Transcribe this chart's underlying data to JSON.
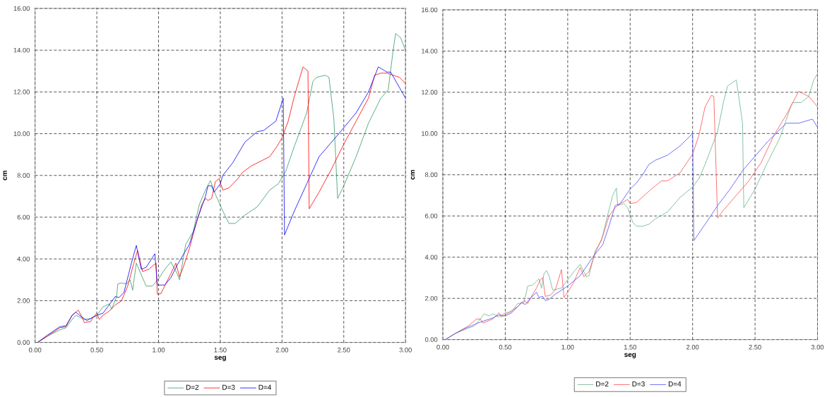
{
  "chart_data": [
    {
      "type": "line",
      "xlabel": "seg",
      "ylabel": "cm",
      "xlim": [
        0,
        3
      ],
      "ylim": [
        0,
        16
      ],
      "xticks": [
        {
          "value": 0,
          "label": "0.00"
        },
        {
          "value": 0.5,
          "label": "0.50"
        },
        {
          "value": 1,
          "label": "1.00"
        },
        {
          "value": 1.5,
          "label": "1.50"
        },
        {
          "value": 2,
          "label": "2.00"
        },
        {
          "value": 2.5,
          "label": "2.50"
        },
        {
          "value": 3,
          "label": "3.00"
        }
      ],
      "yticks": [
        {
          "value": 0,
          "label": "0.00"
        },
        {
          "value": 2,
          "label": "2.00"
        },
        {
          "value": 4,
          "label": "4.00"
        },
        {
          "value": 6,
          "label": "6.00"
        },
        {
          "value": 8,
          "label": "8.00"
        },
        {
          "value": 10,
          "label": "10.00"
        },
        {
          "value": 12,
          "label": "12.00"
        },
        {
          "value": 14,
          "label": "14.00"
        },
        {
          "value": 16,
          "label": "16.00"
        }
      ],
      "grid": true,
      "legend": "bottom",
      "line_style": "solid",
      "series": [
        {
          "name": "D=2",
          "color": "#339966",
          "x": [
            0.02,
            0.1,
            0.2,
            0.25,
            0.3,
            0.33,
            0.4,
            0.45,
            0.5,
            0.55,
            0.6,
            0.62,
            0.66,
            0.67,
            0.7,
            0.74,
            0.77,
            0.79,
            0.82,
            0.87,
            0.9,
            0.95,
            1.0,
            1.05,
            1.1,
            1.15,
            1.17,
            1.22,
            1.28,
            1.33,
            1.38,
            1.42,
            1.46,
            1.52,
            1.57,
            1.62,
            1.7,
            1.75,
            1.8,
            1.9,
            1.97,
            2.03,
            2.1,
            2.2,
            2.25,
            2.28,
            2.35,
            2.38,
            2.42,
            2.45,
            2.5,
            2.6,
            2.7,
            2.8,
            2.86,
            2.9,
            2.92,
            2.96,
            3.0
          ],
          "values": [
            0,
            0.3,
            0.6,
            0.7,
            1.1,
            1.3,
            1.1,
            1.15,
            1.3,
            1.7,
            1.85,
            1.6,
            2.2,
            2.8,
            2.85,
            2.8,
            3.0,
            2.5,
            3.8,
            3.1,
            2.7,
            2.7,
            3.05,
            3.5,
            3.85,
            3.3,
            3.0,
            4.7,
            5.3,
            6.6,
            7.3,
            7.75,
            7.1,
            6.3,
            5.7,
            5.7,
            6.1,
            6.3,
            6.5,
            7.3,
            7.6,
            8.2,
            9.4,
            11.0,
            12.5,
            12.7,
            12.8,
            12.7,
            10.7,
            6.9,
            7.5,
            8.9,
            10.5,
            11.7,
            12.1,
            14.0,
            14.8,
            14.6,
            14.0
          ]
        },
        {
          "name": "D=3",
          "color": "#ff0000",
          "x": [
            0.02,
            0.1,
            0.2,
            0.25,
            0.3,
            0.35,
            0.38,
            0.4,
            0.45,
            0.47,
            0.5,
            0.52,
            0.55,
            0.6,
            0.65,
            0.7,
            0.75,
            0.8,
            0.83,
            0.87,
            0.92,
            0.98,
            0.99,
            1.02,
            1.1,
            1.14,
            1.17,
            1.2,
            1.25,
            1.3,
            1.35,
            1.38,
            1.4,
            1.43,
            1.46,
            1.49,
            1.52,
            1.57,
            1.65,
            1.68,
            1.75,
            1.8,
            1.9,
            1.96,
            2.0,
            2.05,
            2.1,
            2.17,
            2.21,
            2.22,
            2.3,
            2.4,
            2.5,
            2.6,
            2.7,
            2.75,
            2.8,
            2.85,
            2.9,
            2.95,
            3.0
          ],
          "values": [
            0,
            0.3,
            0.7,
            0.75,
            1.3,
            1.55,
            1.2,
            0.95,
            1.0,
            1.2,
            1.4,
            1.1,
            1.3,
            1.5,
            1.8,
            2.0,
            2.7,
            3.8,
            4.4,
            3.4,
            3.5,
            3.8,
            2.3,
            2.35,
            3.3,
            3.8,
            3.15,
            3.6,
            4.5,
            5.6,
            6.6,
            6.9,
            6.8,
            6.9,
            7.7,
            7.85,
            7.3,
            7.4,
            7.9,
            8.15,
            8.45,
            8.6,
            8.9,
            9.4,
            9.8,
            10.6,
            11.8,
            13.2,
            13.0,
            6.4,
            7.2,
            8.3,
            9.5,
            10.6,
            11.7,
            12.8,
            12.9,
            12.9,
            12.8,
            12.7,
            12.4
          ]
        },
        {
          "name": "D=4",
          "color": "#0000ff",
          "x": [
            0.02,
            0.1,
            0.2,
            0.25,
            0.3,
            0.33,
            0.36,
            0.42,
            0.5,
            0.55,
            0.6,
            0.65,
            0.68,
            0.72,
            0.78,
            0.82,
            0.86,
            0.9,
            0.97,
            0.99,
            1.05,
            1.1,
            1.15,
            1.25,
            1.32,
            1.38,
            1.4,
            1.43,
            1.45,
            1.5,
            1.52,
            1.6,
            1.7,
            1.8,
            1.85,
            1.95,
            2.01,
            2.02,
            2.1,
            2.2,
            2.3,
            2.46,
            2.6,
            2.7,
            2.78,
            2.85,
            2.88,
            3.0
          ],
          "values": [
            0,
            0.35,
            0.75,
            0.8,
            1.3,
            1.45,
            1.3,
            1.05,
            1.3,
            1.4,
            1.8,
            2.2,
            2.15,
            2.4,
            3.8,
            4.65,
            3.5,
            3.6,
            4.25,
            2.75,
            2.75,
            3.1,
            3.7,
            4.7,
            6.0,
            7.0,
            7.5,
            7.5,
            7.2,
            7.6,
            8.0,
            8.6,
            9.6,
            10.1,
            10.15,
            10.6,
            11.7,
            5.15,
            6.3,
            7.6,
            8.9,
            10.0,
            11.0,
            12.0,
            13.2,
            12.95,
            12.95,
            11.7
          ]
        }
      ]
    },
    {
      "type": "line",
      "xlabel": "seg",
      "ylabel": "cm",
      "xlim": [
        0,
        3
      ],
      "ylim": [
        0,
        16
      ],
      "xticks": [
        {
          "value": 0,
          "label": "0.00"
        },
        {
          "value": 0.5,
          "label": "0.50"
        },
        {
          "value": 1,
          "label": "1.00"
        },
        {
          "value": 1.5,
          "label": "1.50"
        },
        {
          "value": 2,
          "label": "2.00"
        },
        {
          "value": 2.5,
          "label": "2.50"
        },
        {
          "value": 3,
          "label": "3.00"
        }
      ],
      "yticks": [
        {
          "value": 0,
          "label": "0.00"
        },
        {
          "value": 2,
          "label": "2.00"
        },
        {
          "value": 4,
          "label": "4.00"
        },
        {
          "value": 6,
          "label": "6.00"
        },
        {
          "value": 8,
          "label": "8.00"
        },
        {
          "value": 10,
          "label": "10.00"
        },
        {
          "value": 12,
          "label": "12.00"
        },
        {
          "value": 14,
          "label": "14.00"
        },
        {
          "value": 16,
          "label": "16.00"
        }
      ],
      "grid": true,
      "legend": "bottom",
      "line_style": "solid",
      "series": [
        {
          "name": "D=2",
          "color": "#66b38c",
          "x": [
            0.02,
            0.1,
            0.2,
            0.25,
            0.3,
            0.33,
            0.37,
            0.4,
            0.45,
            0.5,
            0.55,
            0.6,
            0.65,
            0.68,
            0.72,
            0.77,
            0.79,
            0.81,
            0.83,
            0.85,
            0.88,
            0.95,
            1.0,
            1.05,
            1.1,
            1.12,
            1.15,
            1.17,
            1.22,
            1.27,
            1.31,
            1.36,
            1.39,
            1.4,
            1.45,
            1.48,
            1.52,
            1.55,
            1.6,
            1.65,
            1.7,
            1.8,
            1.9,
            2.0,
            2.05,
            2.1,
            2.2,
            2.25,
            2.28,
            2.35,
            2.4,
            2.41,
            2.5,
            2.6,
            2.7,
            2.78,
            2.8,
            2.87,
            2.93,
            2.97,
            3.0
          ],
          "values": [
            0,
            0.3,
            0.55,
            0.65,
            1.0,
            1.25,
            1.15,
            1.25,
            1.1,
            1.3,
            1.35,
            1.75,
            1.8,
            2.6,
            2.65,
            2.95,
            2.5,
            3.2,
            3.35,
            3.1,
            2.4,
            2.5,
            2.9,
            3.3,
            3.65,
            3.4,
            3.05,
            3.1,
            4.3,
            4.8,
            5.8,
            7.0,
            7.35,
            6.5,
            6.6,
            6.4,
            5.7,
            5.5,
            5.5,
            5.6,
            5.85,
            6.2,
            6.9,
            7.4,
            7.8,
            8.5,
            10.1,
            11.6,
            12.3,
            12.6,
            10.5,
            6.4,
            7.3,
            8.6,
            9.8,
            11.2,
            11.5,
            11.5,
            11.8,
            12.6,
            12.9
          ]
        },
        {
          "name": "D=3",
          "color": "#ff4d4d",
          "x": [
            0.02,
            0.1,
            0.2,
            0.27,
            0.3,
            0.32,
            0.4,
            0.45,
            0.47,
            0.5,
            0.55,
            0.6,
            0.65,
            0.68,
            0.72,
            0.75,
            0.78,
            0.8,
            0.82,
            0.86,
            0.9,
            0.95,
            0.97,
            1.0,
            1.05,
            1.1,
            1.13,
            1.17,
            1.22,
            1.28,
            1.33,
            1.38,
            1.42,
            1.48,
            1.5,
            1.55,
            1.65,
            1.75,
            1.8,
            1.9,
            2.0,
            2.05,
            2.1,
            2.15,
            2.17,
            2.2,
            2.25,
            2.35,
            2.45,
            2.55,
            2.65,
            2.75,
            2.85,
            2.93,
            3.0
          ],
          "values": [
            0,
            0.3,
            0.65,
            1.0,
            1.0,
            0.8,
            1.0,
            1.3,
            1.1,
            1.2,
            1.4,
            1.6,
            1.9,
            1.75,
            2.2,
            2.5,
            2.9,
            3.0,
            2.1,
            2.15,
            2.4,
            3.4,
            2.05,
            2.3,
            2.8,
            3.5,
            3.05,
            3.3,
            4.2,
            5.0,
            6.0,
            6.4,
            6.6,
            6.8,
            6.6,
            6.65,
            7.2,
            7.7,
            7.7,
            8.1,
            9.0,
            9.9,
            11.3,
            11.85,
            11.8,
            5.9,
            6.3,
            7.0,
            7.7,
            8.6,
            9.9,
            10.9,
            12.05,
            11.8,
            11.3
          ]
        },
        {
          "name": "D=4",
          "color": "#4d4dff",
          "x": [
            0.02,
            0.1,
            0.2,
            0.3,
            0.35,
            0.4,
            0.45,
            0.5,
            0.55,
            0.6,
            0.63,
            0.66,
            0.7,
            0.75,
            0.77,
            0.8,
            0.82,
            0.85,
            0.9,
            1.0,
            1.1,
            1.2,
            1.28,
            1.33,
            1.38,
            1.42,
            1.5,
            1.55,
            1.6,
            1.65,
            1.7,
            1.8,
            1.9,
            1.95,
            2.0,
            2.01,
            2.1,
            2.2,
            2.3,
            2.4,
            2.5,
            2.6,
            2.7,
            2.75,
            2.85,
            2.96,
            3.0
          ],
          "values": [
            0,
            0.3,
            0.6,
            0.85,
            0.95,
            1.05,
            1.2,
            1.15,
            1.3,
            1.6,
            1.8,
            1.7,
            2.0,
            2.3,
            2.05,
            2.1,
            1.9,
            1.95,
            2.2,
            2.6,
            3.1,
            4.0,
            4.6,
            5.5,
            6.5,
            6.6,
            7.3,
            7.6,
            8.0,
            8.5,
            8.7,
            8.95,
            9.4,
            9.7,
            10.0,
            4.8,
            5.6,
            6.5,
            7.3,
            8.2,
            8.9,
            9.6,
            10.2,
            10.5,
            10.5,
            10.7,
            10.3
          ]
        }
      ]
    }
  ]
}
